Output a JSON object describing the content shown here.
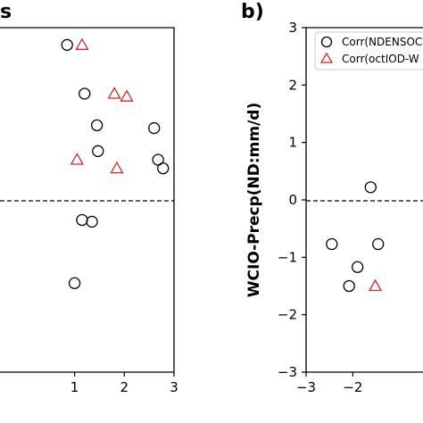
{
  "chart_data": [
    {
      "type": "scatter",
      "panel_label": "s",
      "title": "",
      "xlabel": "",
      "ylabel": "",
      "xlim": [
        -0.5,
        3
      ],
      "ylim": [
        -3,
        3
      ],
      "xticks": [
        1,
        2,
        3
      ],
      "x_tick_labels": [
        "1",
        "2",
        "3"
      ],
      "yticks": [],
      "reference_line_y": 0,
      "series": [
        {
          "marker": "circle",
          "color": "#000000",
          "points": [
            {
              "x": 0.85,
              "y": 2.7
            },
            {
              "x": 1.2,
              "y": 1.85
            },
            {
              "x": 1.45,
              "y": 1.3
            },
            {
              "x": 1.47,
              "y": 0.85
            },
            {
              "x": 2.6,
              "y": 1.25
            },
            {
              "x": 2.68,
              "y": 0.7
            },
            {
              "x": 2.78,
              "y": 0.55
            },
            {
              "x": 1.15,
              "y": -0.35
            },
            {
              "x": 1.35,
              "y": -0.38
            },
            {
              "x": 1.0,
              "y": -1.45
            }
          ]
        },
        {
          "marker": "triangle",
          "color": "#d62728",
          "points": [
            {
              "x": 1.15,
              "y": 2.7
            },
            {
              "x": 1.8,
              "y": 1.85
            },
            {
              "x": 2.05,
              "y": 1.8
            },
            {
              "x": 1.05,
              "y": 0.7
            },
            {
              "x": 1.85,
              "y": 0.55
            }
          ]
        }
      ]
    },
    {
      "type": "scatter",
      "panel_label": "b)",
      "title": "",
      "xlabel": "",
      "ylabel": "WCIO-Precp(ND:mm/d)",
      "xlim": [
        -3,
        -0.5
      ],
      "ylim": [
        -3,
        3
      ],
      "xticks": [
        -3,
        -2
      ],
      "x_tick_labels": [
        "−3",
        "−2"
      ],
      "yticks": [
        -3,
        -2,
        -1,
        0,
        1,
        2,
        3
      ],
      "y_tick_labels": [
        "−3",
        "−2",
        "−1",
        "0",
        "1",
        "2",
        "3"
      ],
      "reference_line_y": 0,
      "legend": {
        "placement": "top-right",
        "entries": [
          "Corr(NDENSOC",
          "Corr(octIOD-W"
        ]
      },
      "series": [
        {
          "marker": "circle",
          "color": "#000000",
          "points": [
            {
              "x": -2.45,
              "y": -0.77
            },
            {
              "x": -2.08,
              "y": -1.5
            },
            {
              "x": -1.9,
              "y": -1.17
            },
            {
              "x": -1.62,
              "y": 0.22
            },
            {
              "x": -1.46,
              "y": -0.77
            }
          ]
        },
        {
          "marker": "triangle",
          "color": "#d62728",
          "points": [
            {
              "x": -1.52,
              "y": -1.5
            }
          ]
        }
      ]
    }
  ]
}
